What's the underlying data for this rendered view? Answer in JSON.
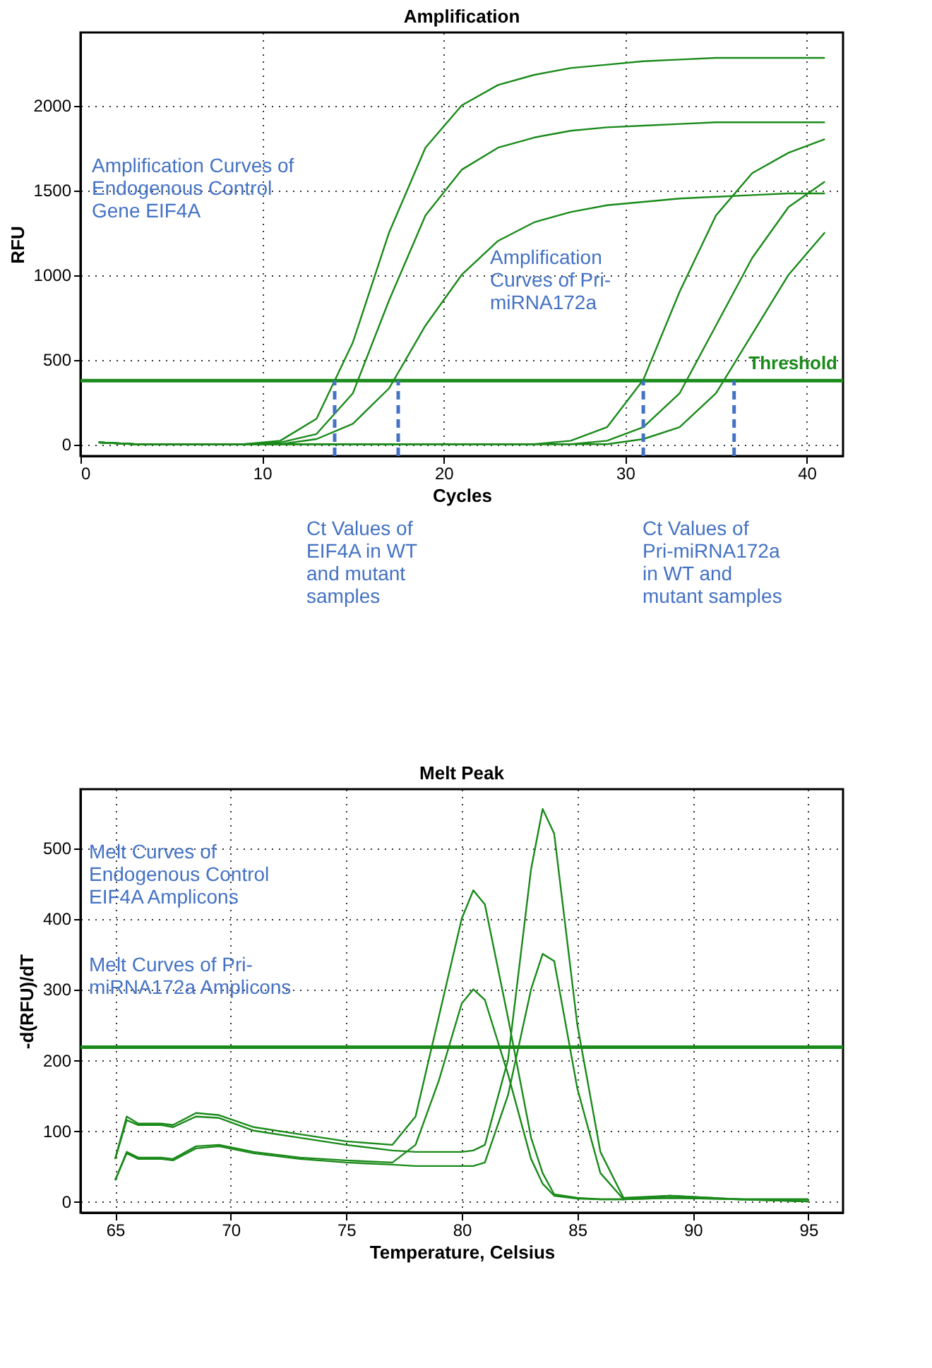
{
  "chart_data": [
    {
      "type": "line",
      "title": "Amplification",
      "xlabel": "Cycles",
      "ylabel": "RFU",
      "xlim": [
        0,
        42
      ],
      "ylim": [
        -70,
        2430
      ],
      "xticks": [
        0,
        10,
        20,
        30,
        40
      ],
      "yticks": [
        0,
        500,
        1000,
        1500,
        2000
      ],
      "grid": true,
      "x": [
        1,
        3,
        5,
        7,
        9,
        11,
        13,
        15,
        17,
        19,
        21,
        23,
        25,
        27,
        29,
        31,
        33,
        35,
        37,
        39,
        41
      ],
      "series": [
        {
          "color": "#1a8a1a",
          "values": [
            10,
            0,
            0,
            0,
            0,
            20,
            150,
            600,
            1250,
            1750,
            2000,
            2120,
            2180,
            2220,
            2240,
            2260,
            2270,
            2280,
            2280,
            2280,
            2280
          ]
        },
        {
          "color": "#1a8a1a",
          "values": [
            10,
            0,
            0,
            0,
            0,
            10,
            60,
            300,
            850,
            1350,
            1620,
            1750,
            1810,
            1850,
            1870,
            1880,
            1890,
            1900,
            1900,
            1900,
            1900
          ]
        },
        {
          "color": "#1a8a1a",
          "values": [
            10,
            0,
            0,
            0,
            0,
            0,
            30,
            120,
            330,
            700,
            1000,
            1200,
            1310,
            1370,
            1410,
            1430,
            1450,
            1460,
            1470,
            1480,
            1480
          ]
        },
        {
          "color": "#1a8a1a",
          "values": [
            10,
            0,
            0,
            0,
            0,
            0,
            0,
            0,
            0,
            0,
            0,
            0,
            0,
            20,
            100,
            380,
            900,
            1350,
            1600,
            1720,
            1800
          ]
        },
        {
          "color": "#1a8a1a",
          "values": [
            10,
            0,
            0,
            0,
            0,
            0,
            0,
            0,
            0,
            0,
            0,
            0,
            0,
            0,
            20,
            100,
            300,
            700,
            1100,
            1400,
            1550
          ]
        },
        {
          "color": "#1a8a1a",
          "values": [
            10,
            0,
            0,
            0,
            0,
            0,
            0,
            0,
            0,
            0,
            0,
            0,
            0,
            0,
            0,
            30,
            100,
            300,
            650,
            1000,
            1250
          ]
        }
      ],
      "ref_lines": [
        {
          "axis": "y",
          "value": 375,
          "label": "Threshold",
          "color": "#1a8a1a"
        },
        {
          "axis": "x",
          "value": 14,
          "color": "#4472c4",
          "line_style": "dashed"
        },
        {
          "axis": "x",
          "value": 17.5,
          "color": "#4472c4",
          "line_style": "dashed"
        },
        {
          "axis": "x",
          "value": 31,
          "color": "#4472c4",
          "line_style": "dashed"
        },
        {
          "axis": "x",
          "value": 36,
          "color": "#4472c4",
          "line_style": "dashed"
        }
      ],
      "annotations": [
        "Amplification Curves of\nEndogenous Control\nGene EIF4A",
        "Amplification\nCurves of Pri-\nmiRNA172a",
        "Ct Values of\nEIF4A in WT\nand mutant\nsamples",
        "Ct Values of\nPri-miRNA172a\nin WT and\nmutant samples"
      ]
    },
    {
      "type": "line",
      "title": "Melt Peak",
      "xlabel": "Temperature, Celsius",
      "ylabel": "-d(RFU)/dT",
      "xlim": [
        63.5,
        96.5
      ],
      "ylim": [
        -16,
        583
      ],
      "xticks": [
        65,
        70,
        75,
        80,
        85,
        90,
        95
      ],
      "yticks": [
        0,
        100,
        200,
        300,
        400,
        500
      ],
      "grid": true,
      "x": [
        65,
        65.5,
        66,
        67,
        67.5,
        68.5,
        69.5,
        71,
        73,
        75,
        77,
        78,
        79,
        80,
        80.5,
        81,
        82,
        83,
        83.5,
        84,
        85,
        86,
        87,
        89,
        92,
        95
      ],
      "series": [
        {
          "color": "#1a8a1a",
          "values": [
            60,
            120,
            110,
            110,
            108,
            125,
            122,
            105,
            95,
            85,
            80,
            120,
            260,
            400,
            440,
            420,
            260,
            90,
            40,
            10,
            5,
            3,
            3,
            8,
            3,
            3
          ]
        },
        {
          "color": "#1a8a1a",
          "values": [
            30,
            70,
            62,
            62,
            60,
            78,
            80,
            70,
            62,
            58,
            55,
            80,
            170,
            280,
            300,
            285,
            180,
            60,
            25,
            8,
            4,
            3,
            3,
            5,
            3,
            0
          ]
        },
        {
          "color": "#1a8a1a",
          "values": [
            60,
            115,
            108,
            108,
            105,
            120,
            118,
            100,
            90,
            80,
            72,
            70,
            70,
            70,
            72,
            80,
            200,
            470,
            555,
            520,
            250,
            70,
            5,
            8,
            3,
            3
          ]
        },
        {
          "color": "#1a8a1a",
          "values": [
            30,
            68,
            60,
            60,
            58,
            75,
            78,
            68,
            60,
            55,
            52,
            50,
            50,
            50,
            50,
            55,
            150,
            300,
            350,
            340,
            160,
            40,
            3,
            5,
            3,
            0
          ]
        }
      ],
      "ref_lines": [
        {
          "axis": "y",
          "value": 218,
          "color": "#1a8a1a"
        }
      ],
      "annotations": [
        "Melt Curves of\nEndogenous Control\nEIF4A Amplicons",
        "Melt Curves of Pri-\nmiRNA172a  Amplicons"
      ]
    }
  ]
}
